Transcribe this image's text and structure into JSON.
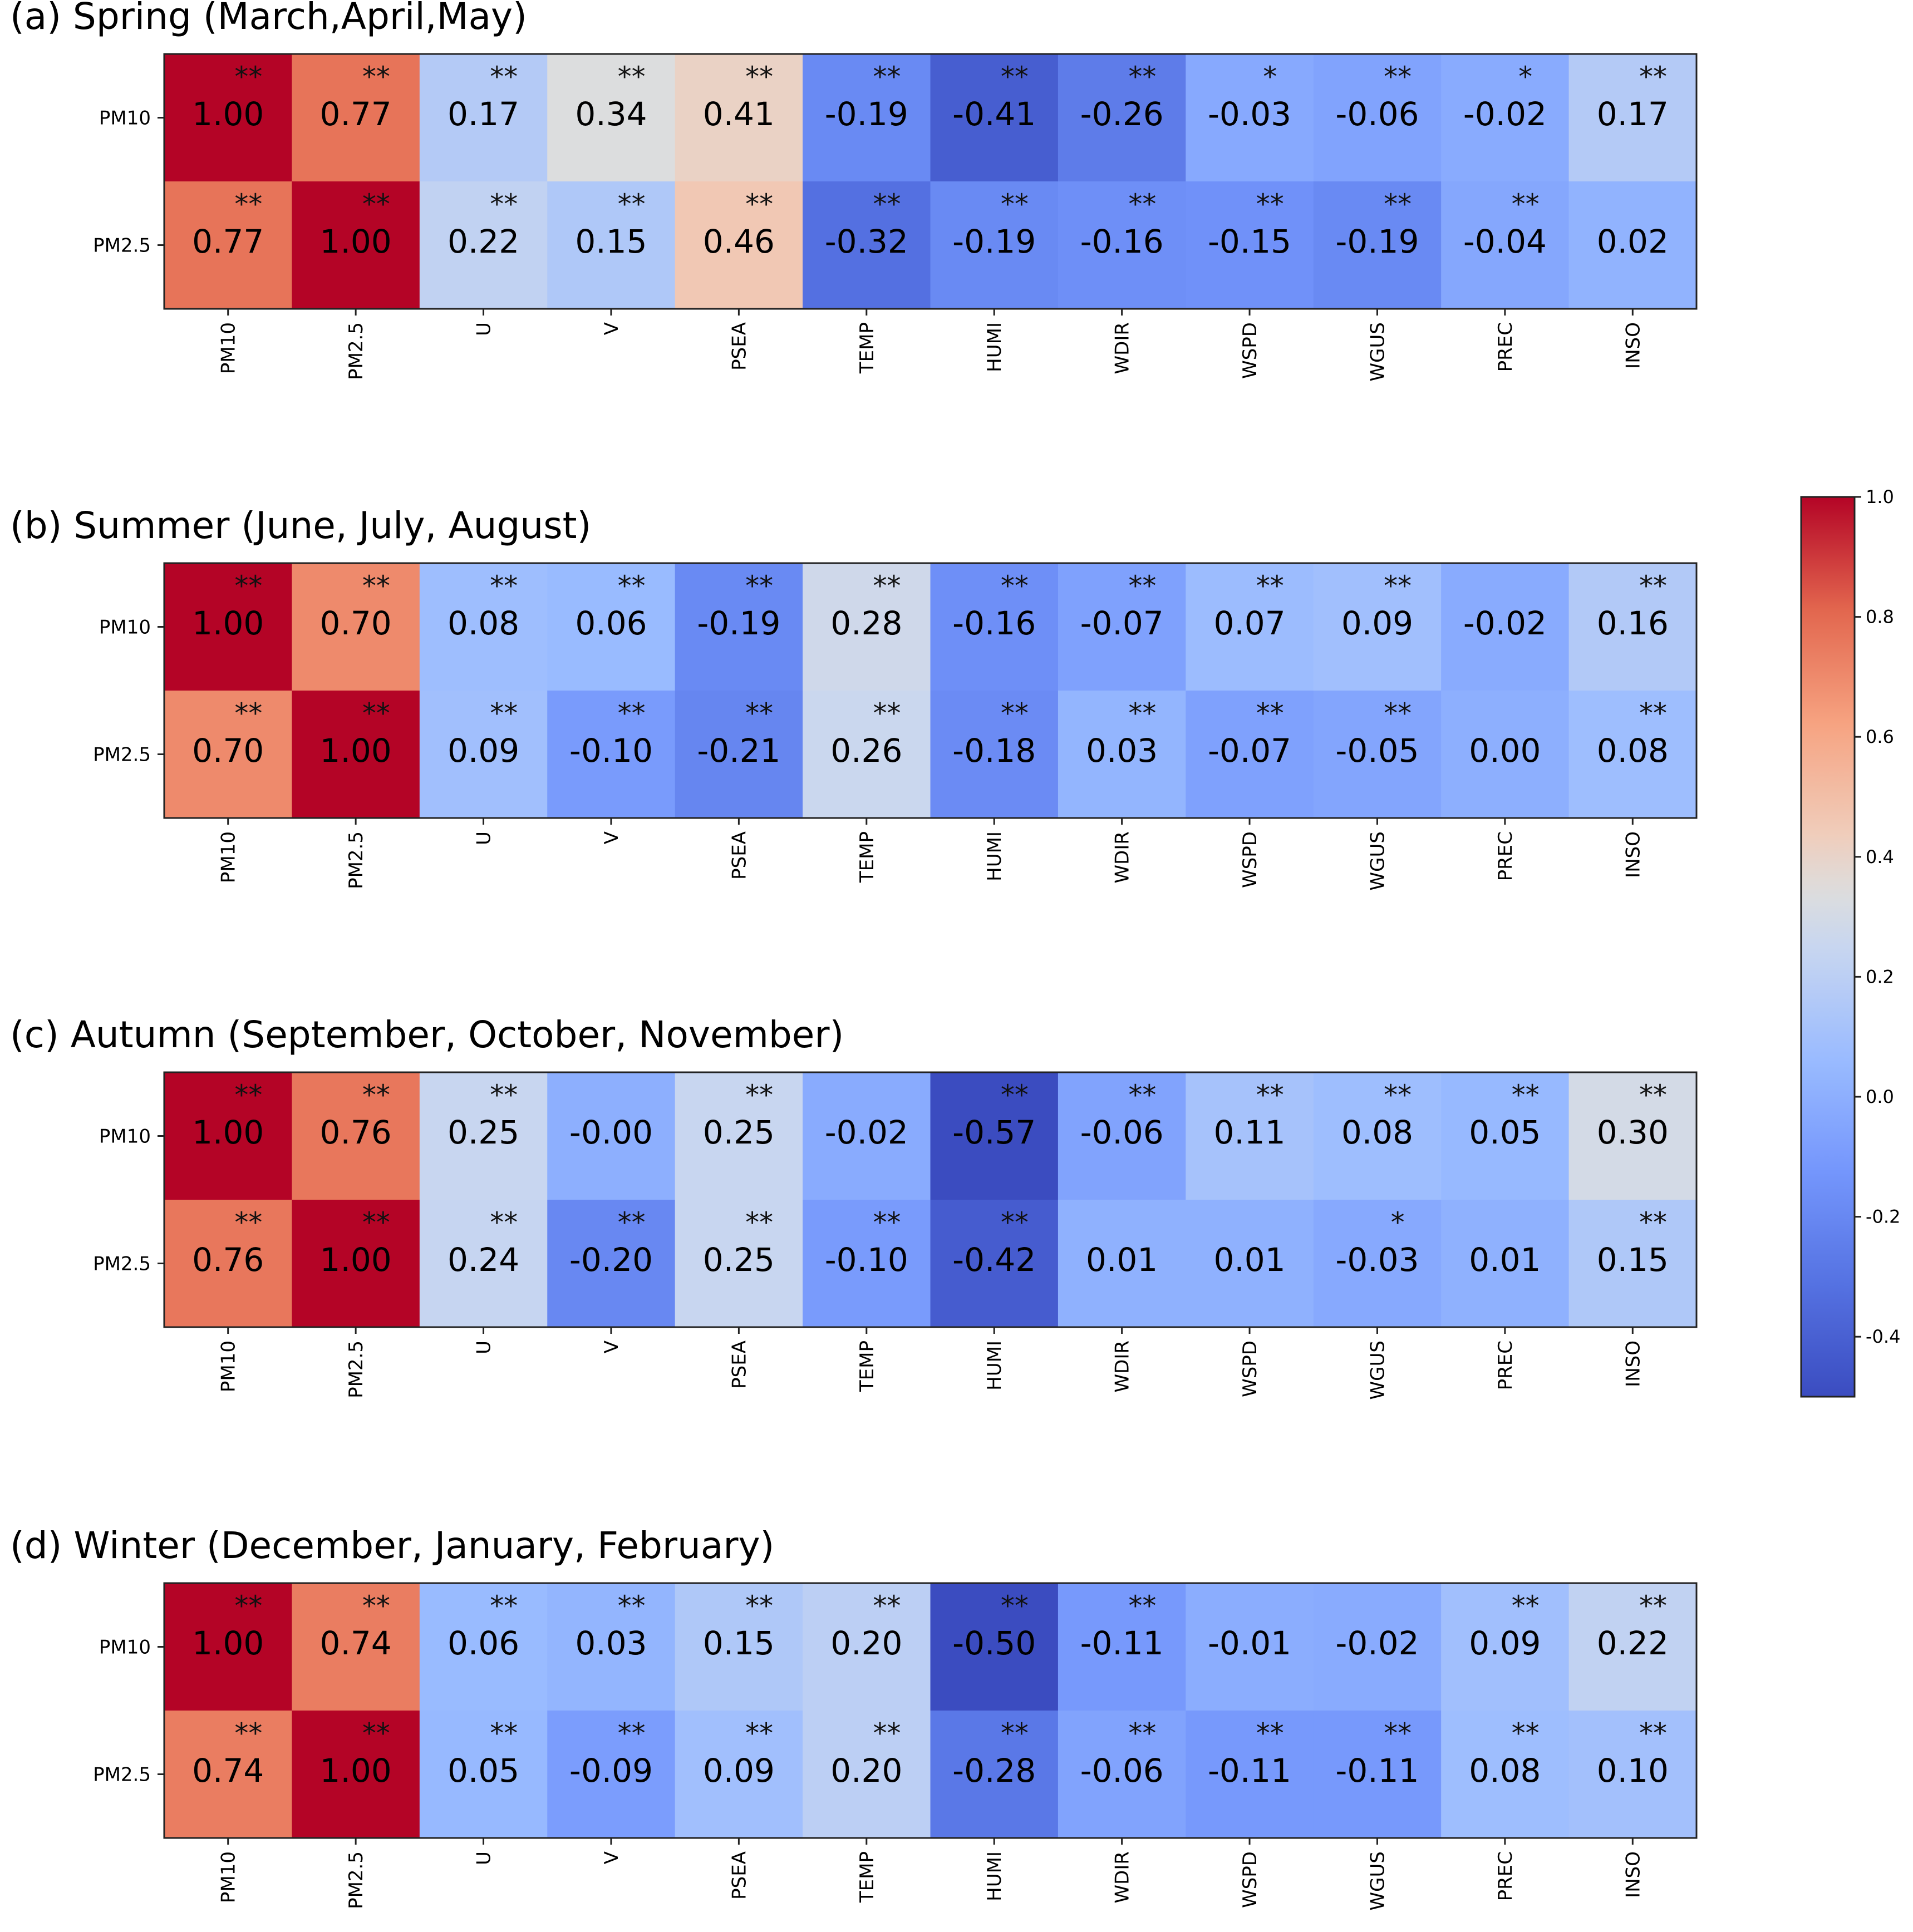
{
  "colorbar": {
    "ticks": [
      "1.0",
      "0.8",
      "0.6",
      "0.4",
      "0.2",
      "0.0",
      "-0.2",
      "-0.4"
    ],
    "tick_values": [
      1.0,
      0.8,
      0.6,
      0.4,
      0.2,
      0.0,
      -0.2,
      -0.4
    ],
    "vmin": -0.5,
    "vmax": 1.0,
    "colormap": "coolwarm",
    "colors": {
      "low": "#3b4cc0",
      "mid": "#dddddd",
      "high": "#b40426"
    }
  },
  "chart_data": [
    {
      "type": "heatmap",
      "title": "(a) Spring (March,April,May)",
      "rows": [
        "PM10",
        "PM2.5"
      ],
      "columns": [
        "PM10",
        "PM2.5",
        "U",
        "V",
        "PSEA",
        "TEMP",
        "HUMI",
        "WDIR",
        "WSPD",
        "WGUS",
        "PREC",
        "INSO"
      ],
      "labels": [
        [
          "1.00",
          "0.77",
          "0.17",
          "0.34",
          "0.41",
          "-0.19",
          "-0.41",
          "-0.26",
          "-0.03",
          "-0.06",
          "-0.02",
          "0.17"
        ],
        [
          "0.77",
          "1.00",
          "0.22",
          "0.15",
          "0.46",
          "-0.32",
          "-0.19",
          "-0.16",
          "-0.15",
          "-0.19",
          "-0.04",
          "0.02"
        ]
      ],
      "values": [
        [
          1.0,
          0.77,
          0.17,
          0.34,
          0.41,
          -0.19,
          -0.41,
          -0.26,
          -0.03,
          -0.06,
          -0.02,
          0.17
        ],
        [
          0.77,
          1.0,
          0.22,
          0.15,
          0.46,
          -0.32,
          -0.19,
          -0.16,
          -0.15,
          -0.19,
          -0.04,
          0.02
        ]
      ],
      "significance": [
        [
          "**",
          "**",
          "**",
          "**",
          "**",
          "**",
          "**",
          "**",
          "*",
          "**",
          "*",
          "**"
        ],
        [
          "**",
          "**",
          "**",
          "**",
          "**",
          "**",
          "**",
          "**",
          "**",
          "**",
          "**",
          ""
        ]
      ]
    },
    {
      "type": "heatmap",
      "title": "(b) Summer (June, July, August)",
      "rows": [
        "PM10",
        "PM2.5"
      ],
      "columns": [
        "PM10",
        "PM2.5",
        "U",
        "V",
        "PSEA",
        "TEMP",
        "HUMI",
        "WDIR",
        "WSPD",
        "WGUS",
        "PREC",
        "INSO"
      ],
      "labels": [
        [
          "1.00",
          "0.70",
          "0.08",
          "0.06",
          "-0.19",
          "0.28",
          "-0.16",
          "-0.07",
          "0.07",
          "0.09",
          "-0.02",
          "0.16"
        ],
        [
          "0.70",
          "1.00",
          "0.09",
          "-0.10",
          "-0.21",
          "0.26",
          "-0.18",
          "0.03",
          "-0.07",
          "-0.05",
          "0.00",
          "0.08"
        ]
      ],
      "values": [
        [
          1.0,
          0.7,
          0.08,
          0.06,
          -0.19,
          0.28,
          -0.16,
          -0.07,
          0.07,
          0.09,
          -0.02,
          0.16
        ],
        [
          0.7,
          1.0,
          0.09,
          -0.1,
          -0.21,
          0.26,
          -0.18,
          0.03,
          -0.07,
          -0.05,
          0.0,
          0.08
        ]
      ],
      "significance": [
        [
          "**",
          "**",
          "**",
          "**",
          "**",
          "**",
          "**",
          "**",
          "**",
          "**",
          "",
          "**"
        ],
        [
          "**",
          "**",
          "**",
          "**",
          "**",
          "**",
          "**",
          "**",
          "**",
          "**",
          "",
          "**"
        ]
      ]
    },
    {
      "type": "heatmap",
      "title": "(c) Autumn (September, October, November)",
      "rows": [
        "PM10",
        "PM2.5"
      ],
      "columns": [
        "PM10",
        "PM2.5",
        "U",
        "V",
        "PSEA",
        "TEMP",
        "HUMI",
        "WDIR",
        "WSPD",
        "WGUS",
        "PREC",
        "INSO"
      ],
      "labels": [
        [
          "1.00",
          "0.76",
          "0.25",
          "-0.00",
          "0.25",
          "-0.02",
          "-0.57",
          "-0.06",
          "0.11",
          "0.08",
          "0.05",
          "0.30"
        ],
        [
          "0.76",
          "1.00",
          "0.24",
          "-0.20",
          "0.25",
          "-0.10",
          "-0.42",
          "0.01",
          "0.01",
          "-0.03",
          "0.01",
          "0.15"
        ]
      ],
      "values": [
        [
          1.0,
          0.76,
          0.25,
          -0.0,
          0.25,
          -0.02,
          -0.57,
          -0.06,
          0.11,
          0.08,
          0.05,
          0.3
        ],
        [
          0.76,
          1.0,
          0.24,
          -0.2,
          0.25,
          -0.1,
          -0.42,
          0.01,
          0.01,
          -0.03,
          0.01,
          0.15
        ]
      ],
      "significance": [
        [
          "**",
          "**",
          "**",
          "",
          "**",
          "",
          "**",
          "**",
          "**",
          "**",
          "**",
          "**"
        ],
        [
          "**",
          "**",
          "**",
          "**",
          "**",
          "**",
          "**",
          "",
          "",
          "*",
          "",
          "**"
        ]
      ]
    },
    {
      "type": "heatmap",
      "title": "(d) Winter (December, January, February)",
      "rows": [
        "PM10",
        "PM2.5"
      ],
      "columns": [
        "PM10",
        "PM2.5",
        "U",
        "V",
        "PSEA",
        "TEMP",
        "HUMI",
        "WDIR",
        "WSPD",
        "WGUS",
        "PREC",
        "INSO"
      ],
      "labels": [
        [
          "1.00",
          "0.74",
          "0.06",
          "0.03",
          "0.15",
          "0.20",
          "-0.50",
          "-0.11",
          "-0.01",
          "-0.02",
          "0.09",
          "0.22"
        ],
        [
          "0.74",
          "1.00",
          "0.05",
          "-0.09",
          "0.09",
          "0.20",
          "-0.28",
          "-0.06",
          "-0.11",
          "-0.11",
          "0.08",
          "0.10"
        ]
      ],
      "values": [
        [
          1.0,
          0.74,
          0.06,
          0.03,
          0.15,
          0.2,
          -0.5,
          -0.11,
          -0.01,
          -0.02,
          0.09,
          0.22
        ],
        [
          0.74,
          1.0,
          0.05,
          -0.09,
          0.09,
          0.2,
          -0.28,
          -0.06,
          -0.11,
          -0.11,
          0.08,
          0.1
        ]
      ],
      "significance": [
        [
          "**",
          "**",
          "**",
          "**",
          "**",
          "**",
          "**",
          "**",
          "",
          "",
          "**",
          "**"
        ],
        [
          "**",
          "**",
          "**",
          "**",
          "**",
          "**",
          "**",
          "**",
          "**",
          "**",
          "**",
          "**"
        ]
      ]
    }
  ]
}
